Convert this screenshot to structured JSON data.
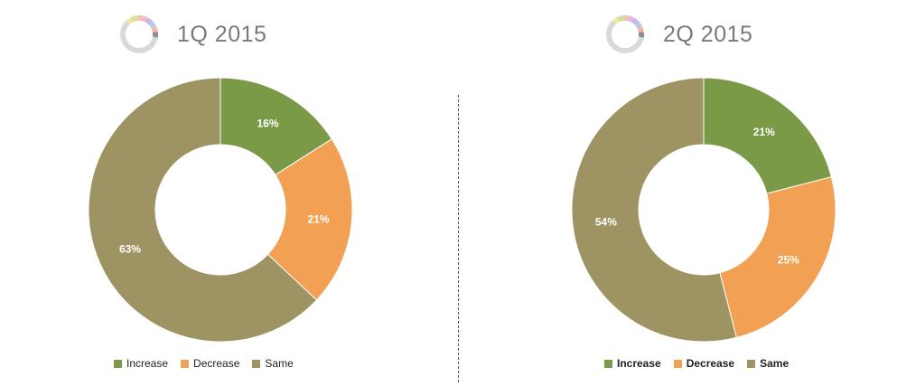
{
  "colors": {
    "increase": "#7a9a48",
    "decrease": "#f2a154",
    "same": "#9e9362"
  },
  "chart_data": [
    {
      "type": "pie",
      "title": "1Q 2015",
      "categories": [
        "Increase",
        "Decrease",
        "Same"
      ],
      "values": [
        16,
        21,
        63
      ],
      "labels": [
        "16%",
        "21%",
        "63%"
      ],
      "legend": {
        "placement": "bottom",
        "entries": [
          "Increase",
          "Decrease",
          "Same"
        ]
      }
    },
    {
      "type": "pie",
      "title": "2Q 2015",
      "categories": [
        "Increase",
        "Decrease",
        "Same"
      ],
      "values": [
        21,
        25,
        54
      ],
      "labels": [
        "21%",
        "25%",
        "54%"
      ],
      "legend": {
        "placement": "bottom",
        "entries": [
          "Increase",
          "Decrease",
          "Same"
        ]
      }
    }
  ]
}
